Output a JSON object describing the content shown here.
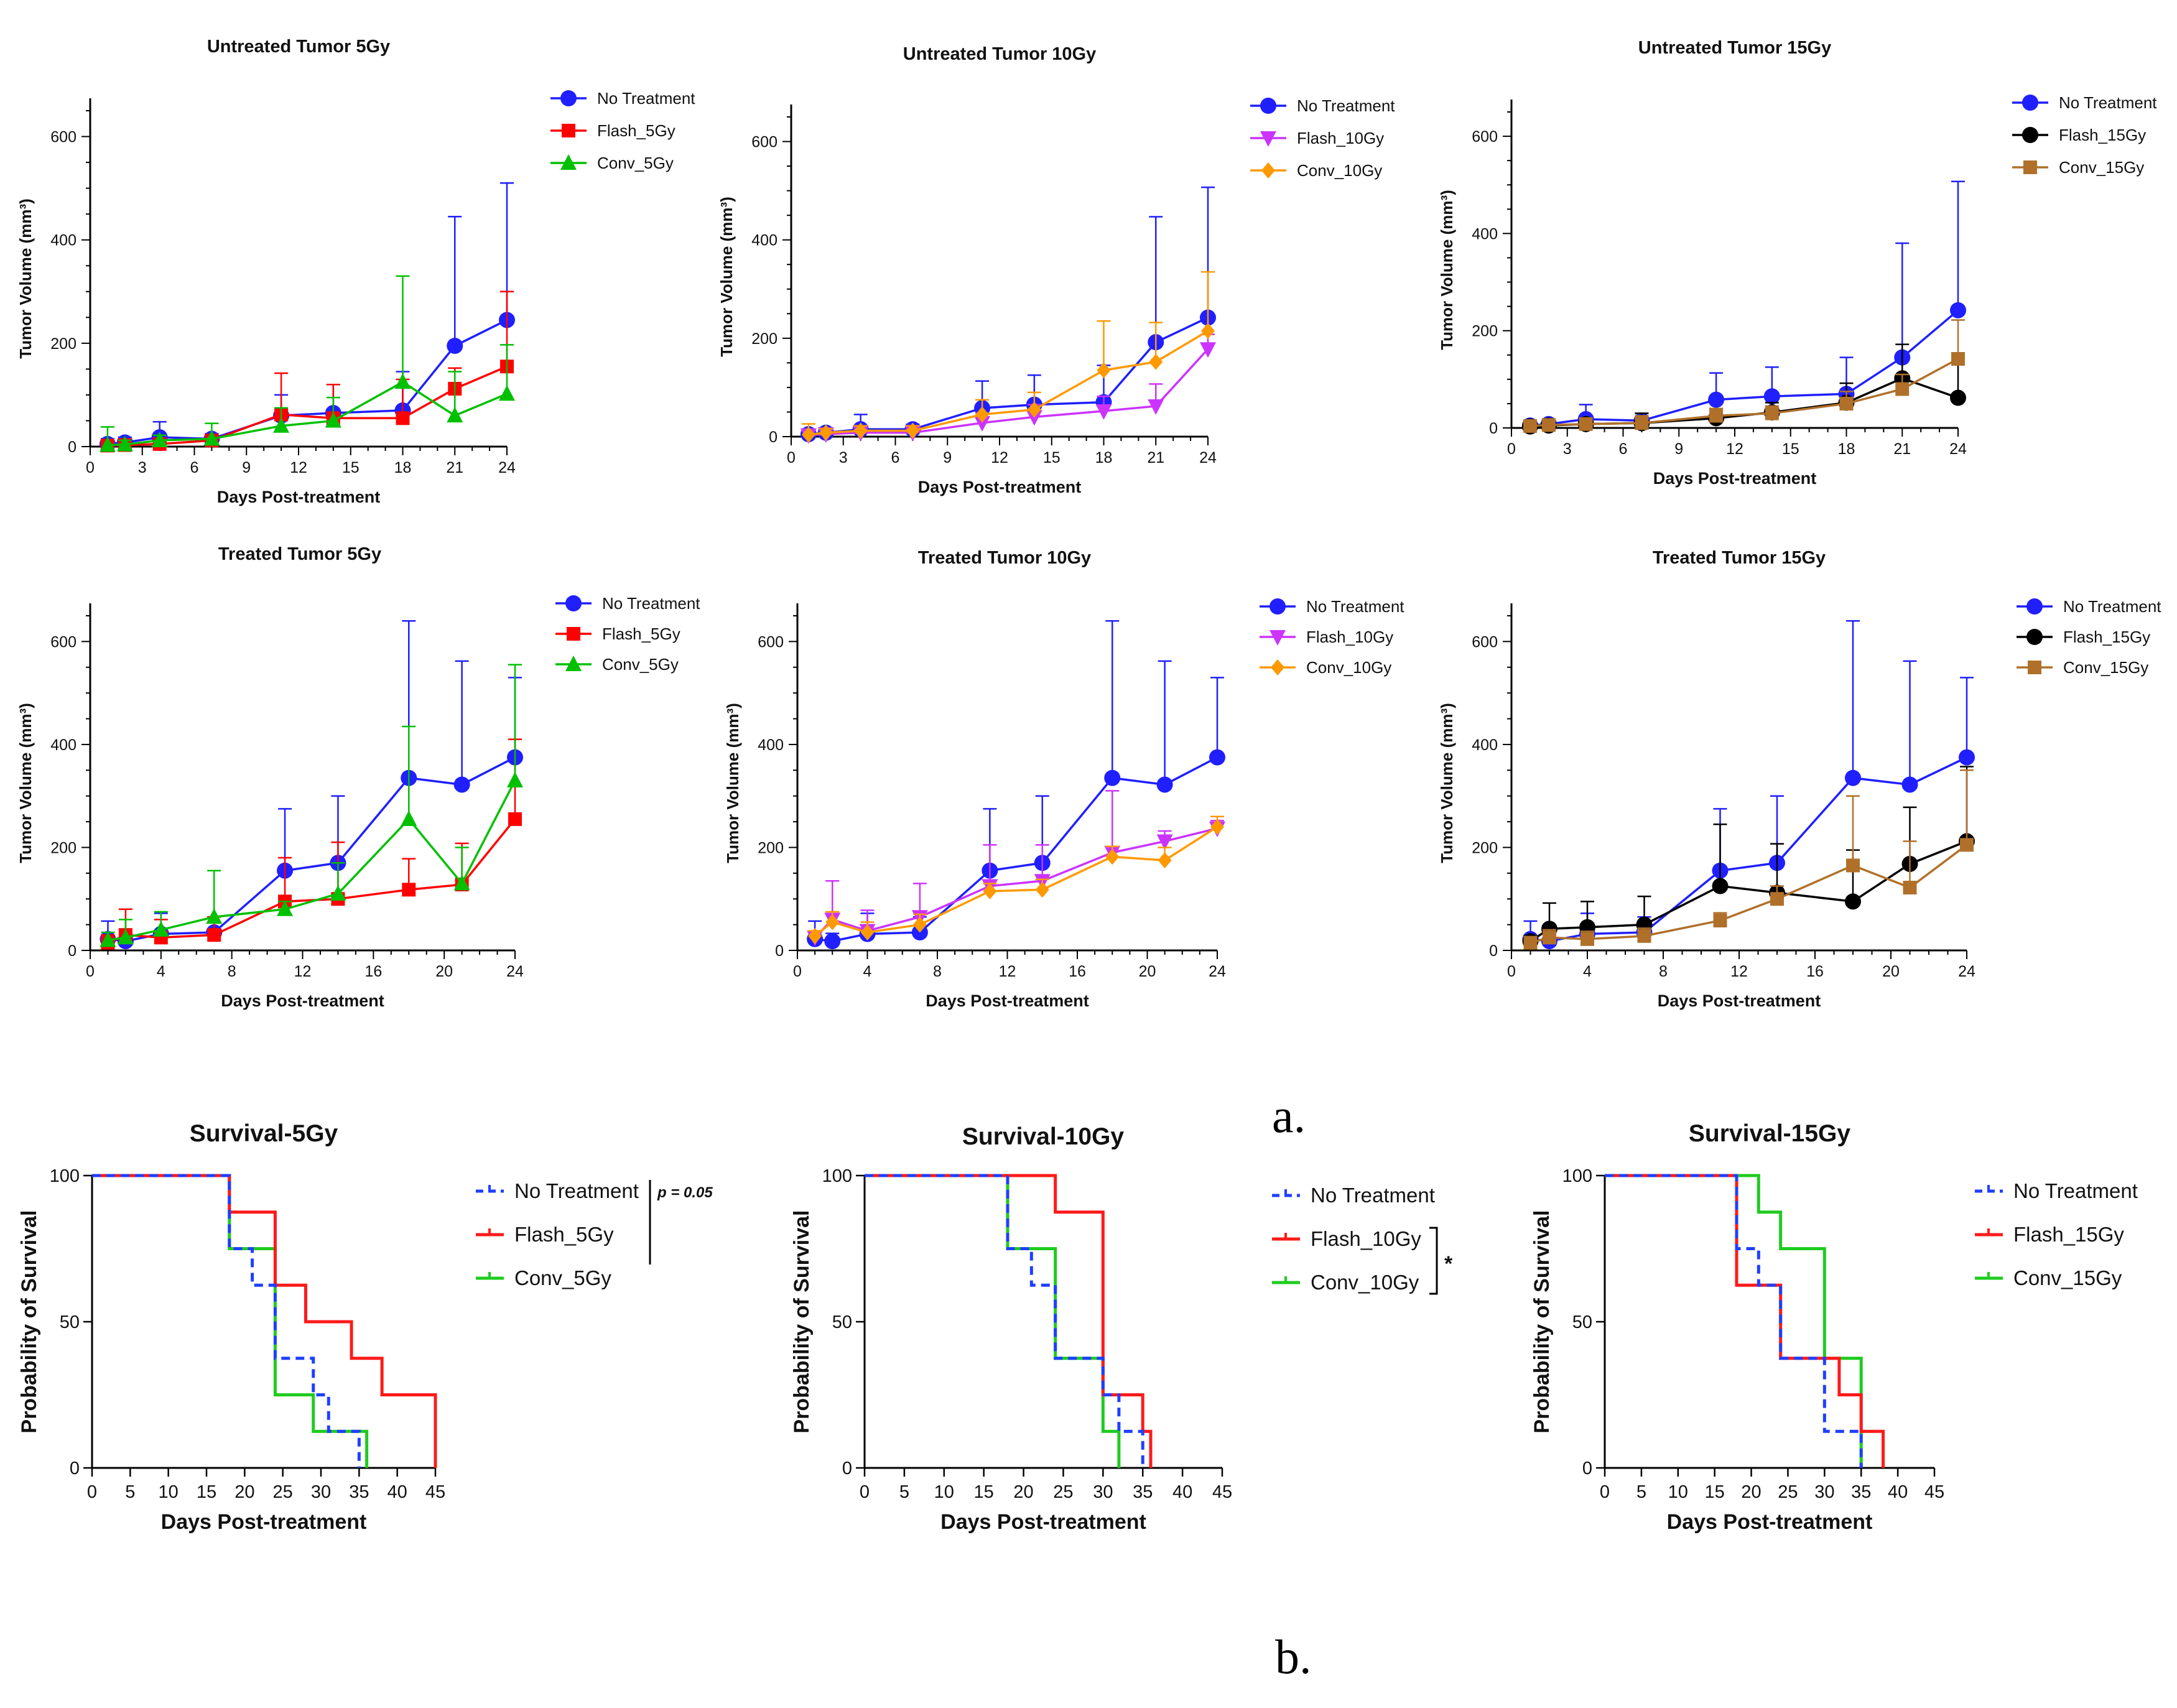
{
  "panel_labels": {
    "a": "a.",
    "b": "b."
  },
  "chart_data": [
    {
      "type": "line",
      "title": "Untreated Tumor 5Gy",
      "xlabel": "Days Post-treatment",
      "ylabel": "Tumor Volume (mm³)",
      "xlim": [
        0,
        24
      ],
      "ylim": [
        0,
        650
      ],
      "xticks": [
        0,
        3,
        6,
        9,
        12,
        15,
        18,
        21,
        24
      ],
      "yticks": [
        0,
        200,
        400,
        600
      ],
      "x": [
        1,
        2,
        4,
        7,
        11,
        14,
        18,
        21,
        24
      ],
      "series": [
        {
          "name": "No Treatment",
          "color": "#1f1fff",
          "marker": "circle",
          "values": [
            5,
            8,
            18,
            15,
            60,
            65,
            70,
            195,
            245
          ],
          "err": [
            10,
            10,
            30,
            10,
            40,
            55,
            75,
            250,
            265
          ]
        },
        {
          "name": "Flash_5Gy",
          "color": "#ff0000",
          "marker": "square",
          "values": [
            2,
            3,
            5,
            12,
            62,
            55,
            55,
            112,
            155
          ],
          "err": [
            8,
            8,
            8,
            10,
            80,
            65,
            75,
            40,
            145
          ]
        },
        {
          "name": "Conv_5Gy",
          "color": "#00c000",
          "marker": "triangle-up",
          "values": [
            3,
            4,
            12,
            15,
            40,
            50,
            125,
            60,
            102
          ],
          "err": [
            35,
            8,
            10,
            30,
            35,
            45,
            205,
            85,
            95
          ]
        }
      ]
    },
    {
      "type": "line",
      "title": "Untreated Tumor 10Gy",
      "xlabel": "Days Post-treatment",
      "ylabel": "Tumor Volume (mm³)",
      "xlim": [
        0,
        24
      ],
      "ylim": [
        0,
        650
      ],
      "xticks": [
        0,
        3,
        6,
        9,
        12,
        15,
        18,
        21,
        24
      ],
      "yticks": [
        0,
        200,
        400,
        600
      ],
      "x": [
        1,
        2,
        4,
        7,
        11,
        14,
        18,
        21,
        24
      ],
      "series": [
        {
          "name": "No Treatment",
          "color": "#1f1fff",
          "marker": "circle",
          "values": [
            5,
            8,
            15,
            15,
            58,
            65,
            70,
            192,
            242
          ],
          "err": [
            10,
            10,
            30,
            10,
            55,
            60,
            75,
            255,
            265
          ]
        },
        {
          "name": "Flash_10Gy",
          "color": "#cc33ff",
          "marker": "triangle-down",
          "values": [
            3,
            5,
            8,
            8,
            28,
            40,
            52,
            62,
            178
          ],
          "err": [
            8,
            8,
            8,
            8,
            20,
            25,
            30,
            45,
            30
          ]
        },
        {
          "name": "Conv_10Gy",
          "color": "#ff9900",
          "marker": "diamond",
          "values": [
            4,
            8,
            12,
            12,
            45,
            55,
            135,
            152,
            215
          ],
          "err": [
            22,
            8,
            10,
            10,
            30,
            35,
            100,
            80,
            120
          ]
        }
      ]
    },
    {
      "type": "line",
      "title": "Untreated Tumor 15Gy",
      "xlabel": "Days Post-treatment",
      "ylabel": "Tumor Volume (mm³)",
      "xlim": [
        0,
        24
      ],
      "ylim": [
        0,
        650
      ],
      "xticks": [
        0,
        3,
        6,
        9,
        12,
        15,
        18,
        21,
        24
      ],
      "yticks": [
        0,
        200,
        400,
        600
      ],
      "x": [
        1,
        2,
        4,
        7,
        11,
        14,
        18,
        21,
        24
      ],
      "series": [
        {
          "name": "No Treatment",
          "color": "#1f1fff",
          "marker": "circle",
          "values": [
            5,
            8,
            18,
            15,
            58,
            65,
            70,
            145,
            242
          ],
          "err": [
            10,
            10,
            30,
            15,
            55,
            60,
            75,
            235,
            265
          ]
        },
        {
          "name": "Flash_15Gy",
          "color": "#000000",
          "marker": "circle",
          "values": [
            3,
            5,
            8,
            10,
            20,
            32,
            52,
            102,
            62
          ],
          "err": [
            8,
            8,
            8,
            20,
            20,
            20,
            40,
            70,
            70
          ]
        },
        {
          "name": "Conv_15Gy",
          "color": "#b0702a",
          "marker": "square",
          "values": [
            4,
            6,
            8,
            10,
            25,
            30,
            50,
            80,
            142
          ],
          "err": [
            10,
            8,
            8,
            15,
            15,
            15,
            25,
            30,
            80
          ]
        }
      ]
    },
    {
      "type": "line",
      "title": "Treated Tumor 5Gy",
      "xlabel": "Days Post-treatment",
      "ylabel": "Tumor Volume (mm³)",
      "xlim": [
        0,
        24
      ],
      "ylim": [
        0,
        650
      ],
      "xticks": [
        0,
        4,
        8,
        12,
        16,
        20,
        24
      ],
      "yticks": [
        0,
        200,
        400,
        600
      ],
      "x": [
        1,
        2,
        4,
        7,
        11,
        14,
        18,
        21,
        24
      ],
      "series": [
        {
          "name": "No Treatment",
          "color": "#1f1fff",
          "marker": "circle",
          "values": [
            22,
            18,
            32,
            35,
            155,
            170,
            335,
            322,
            375
          ],
          "err": [
            35,
            15,
            40,
            30,
            120,
            130,
            305,
            240,
            155
          ]
        },
        {
          "name": "Flash_5Gy",
          "color": "#ff0000",
          "marker": "square",
          "values": [
            15,
            30,
            25,
            30,
            95,
            100,
            118,
            128,
            255
          ],
          "err": [
            15,
            50,
            35,
            35,
            85,
            110,
            60,
            80,
            155
          ]
        },
        {
          "name": "Conv_5Gy",
          "color": "#00c000",
          "marker": "triangle-up",
          "values": [
            20,
            25,
            40,
            65,
            80,
            110,
            255,
            130,
            330
          ],
          "err": [
            15,
            35,
            35,
            90,
            15,
            60,
            180,
            70,
            225
          ]
        }
      ]
    },
    {
      "type": "line",
      "title": "Treated Tumor 10Gy",
      "xlabel": "Days Post-treatment",
      "ylabel": "Tumor Volume (mm³)",
      "xlim": [
        0,
        24
      ],
      "ylim": [
        0,
        650
      ],
      "xticks": [
        0,
        4,
        8,
        12,
        16,
        20,
        24
      ],
      "yticks": [
        0,
        200,
        400,
        600
      ],
      "x": [
        1,
        2,
        4,
        7,
        11,
        14,
        18,
        21,
        24
      ],
      "series": [
        {
          "name": "No Treatment",
          "color": "#1f1fff",
          "marker": "circle",
          "values": [
            22,
            18,
            32,
            35,
            155,
            170,
            335,
            322,
            375
          ],
          "err": [
            35,
            15,
            40,
            30,
            120,
            130,
            305,
            240,
            155
          ]
        },
        {
          "name": "Flash_10Gy",
          "color": "#cc33ff",
          "marker": "triangle-down",
          "values": [
            25,
            60,
            38,
            65,
            125,
            135,
            190,
            212,
            237
          ],
          "err": [
            10,
            75,
            40,
            65,
            80,
            70,
            120,
            20,
            15
          ]
        },
        {
          "name": "Conv_10Gy",
          "color": "#ff9900",
          "marker": "diamond",
          "values": [
            28,
            55,
            35,
            50,
            115,
            118,
            182,
            175,
            240
          ],
          "err": [
            10,
            20,
            20,
            20,
            15,
            20,
            20,
            25,
            20
          ]
        }
      ]
    },
    {
      "type": "line",
      "title": "Treated Tumor 15Gy",
      "xlabel": "Days Post-treatment",
      "ylabel": "Tumor Volume (mm³)",
      "xlim": [
        0,
        24
      ],
      "ylim": [
        0,
        650
      ],
      "xticks": [
        0,
        4,
        8,
        12,
        16,
        20,
        24
      ],
      "yticks": [
        0,
        200,
        400,
        600
      ],
      "x": [
        1,
        2,
        4,
        7,
        11,
        14,
        18,
        21,
        24
      ],
      "series": [
        {
          "name": "No Treatment",
          "color": "#1f1fff",
          "marker": "circle",
          "values": [
            22,
            18,
            32,
            35,
            155,
            170,
            335,
            322,
            375
          ],
          "err": [
            35,
            15,
            40,
            30,
            120,
            130,
            305,
            240,
            155
          ]
        },
        {
          "name": "Flash_15Gy",
          "color": "#000000",
          "marker": "circle",
          "values": [
            18,
            42,
            45,
            50,
            125,
            112,
            95,
            168,
            212
          ],
          "err": [
            10,
            50,
            50,
            55,
            120,
            95,
            100,
            110,
            145
          ]
        },
        {
          "name": "Conv_15Gy",
          "color": "#b0702a",
          "marker": "square",
          "values": [
            15,
            25,
            22,
            28,
            58,
            100,
            165,
            122,
            205
          ],
          "err": [
            10,
            15,
            15,
            15,
            15,
            25,
            135,
            90,
            145
          ]
        }
      ]
    },
    {
      "type": "line",
      "subtype": "survival-step",
      "title": "Survival-5Gy",
      "xlabel": "Days Post-treatment",
      "ylabel": "Probability of Survival",
      "xlim": [
        0,
        45
      ],
      "ylim": [
        0,
        100
      ],
      "xticks": [
        0,
        5,
        10,
        15,
        20,
        25,
        30,
        35,
        40,
        45
      ],
      "yticks": [
        0,
        50,
        100
      ],
      "annotation": "p = 0.05",
      "annotation_group": [
        0,
        1
      ],
      "series": [
        {
          "name": "No Treatment",
          "color": "#1f3fff",
          "dash": true,
          "steps": [
            [
              0,
              100
            ],
            [
              18,
              75
            ],
            [
              21,
              62.5
            ],
            [
              24,
              37.5
            ],
            [
              29,
              25
            ],
            [
              31,
              12.5
            ],
            [
              35,
              0
            ]
          ]
        },
        {
          "name": "Flash_5Gy",
          "color": "#ff1a1a",
          "dash": false,
          "steps": [
            [
              0,
              100
            ],
            [
              18,
              87.5
            ],
            [
              24,
              62.5
            ],
            [
              28,
              50
            ],
            [
              34,
              37.5
            ],
            [
              38,
              25
            ],
            [
              45,
              0
            ]
          ]
        },
        {
          "name": "Conv_5Gy",
          "color": "#1fcc1f",
          "dash": false,
          "steps": [
            [
              0,
              100
            ],
            [
              18,
              75
            ],
            [
              24,
              25
            ],
            [
              29,
              12.5
            ],
            [
              36,
              0
            ]
          ]
        }
      ]
    },
    {
      "type": "line",
      "subtype": "survival-step",
      "title": "Survival-10Gy",
      "xlabel": "Days Post-treatment",
      "ylabel": "Probability of Survival",
      "xlim": [
        0,
        45
      ],
      "ylim": [
        0,
        100
      ],
      "xticks": [
        0,
        5,
        10,
        15,
        20,
        25,
        30,
        35,
        40,
        45
      ],
      "yticks": [
        0,
        50,
        100
      ],
      "annotation": "*",
      "annotation_group": [
        1,
        2
      ],
      "series": [
        {
          "name": "No Treatment",
          "color": "#1f3fff",
          "dash": true,
          "steps": [
            [
              0,
              100
            ],
            [
              18,
              75
            ],
            [
              21,
              62.5
            ],
            [
              24,
              37.5
            ],
            [
              30,
              25
            ],
            [
              32,
              12.5
            ],
            [
              35,
              0
            ]
          ]
        },
        {
          "name": "Flash_10Gy",
          "color": "#ff1a1a",
          "dash": false,
          "steps": [
            [
              0,
              100
            ],
            [
              24,
              87.5
            ],
            [
              30,
              25
            ],
            [
              35,
              12.5
            ],
            [
              36,
              0
            ]
          ]
        },
        {
          "name": "Conv_10Gy",
          "color": "#1fcc1f",
          "dash": false,
          "steps": [
            [
              0,
              100
            ],
            [
              18,
              75
            ],
            [
              24,
              37.5
            ],
            [
              30,
              12.5
            ],
            [
              32,
              0
            ]
          ]
        }
      ]
    },
    {
      "type": "line",
      "subtype": "survival-step",
      "title": "Survival-15Gy",
      "xlabel": "Days Post-treatment",
      "ylabel": "Probability of Survival",
      "xlim": [
        0,
        45
      ],
      "ylim": [
        0,
        100
      ],
      "xticks": [
        0,
        5,
        10,
        15,
        20,
        25,
        30,
        35,
        40,
        45
      ],
      "yticks": [
        0,
        50,
        100
      ],
      "annotation": "",
      "annotation_group": [],
      "series": [
        {
          "name": "No Treatment",
          "color": "#1f3fff",
          "dash": true,
          "steps": [
            [
              0,
              100
            ],
            [
              18,
              75
            ],
            [
              21,
              62.5
            ],
            [
              24,
              37.5
            ],
            [
              28,
              37.5
            ],
            [
              30,
              12.5
            ],
            [
              35,
              0
            ]
          ]
        },
        {
          "name": "Flash_15Gy",
          "color": "#ff1a1a",
          "dash": false,
          "steps": [
            [
              0,
              100
            ],
            [
              18,
              62.5
            ],
            [
              24,
              37.5
            ],
            [
              32,
              25
            ],
            [
              35,
              12.5
            ],
            [
              38,
              0
            ]
          ]
        },
        {
          "name": "Conv_15Gy",
          "color": "#1fcc1f",
          "dash": false,
          "steps": [
            [
              0,
              100
            ],
            [
              21,
              87.5
            ],
            [
              24,
              75
            ],
            [
              30,
              37.5
            ],
            [
              35,
              0
            ]
          ]
        }
      ]
    }
  ]
}
